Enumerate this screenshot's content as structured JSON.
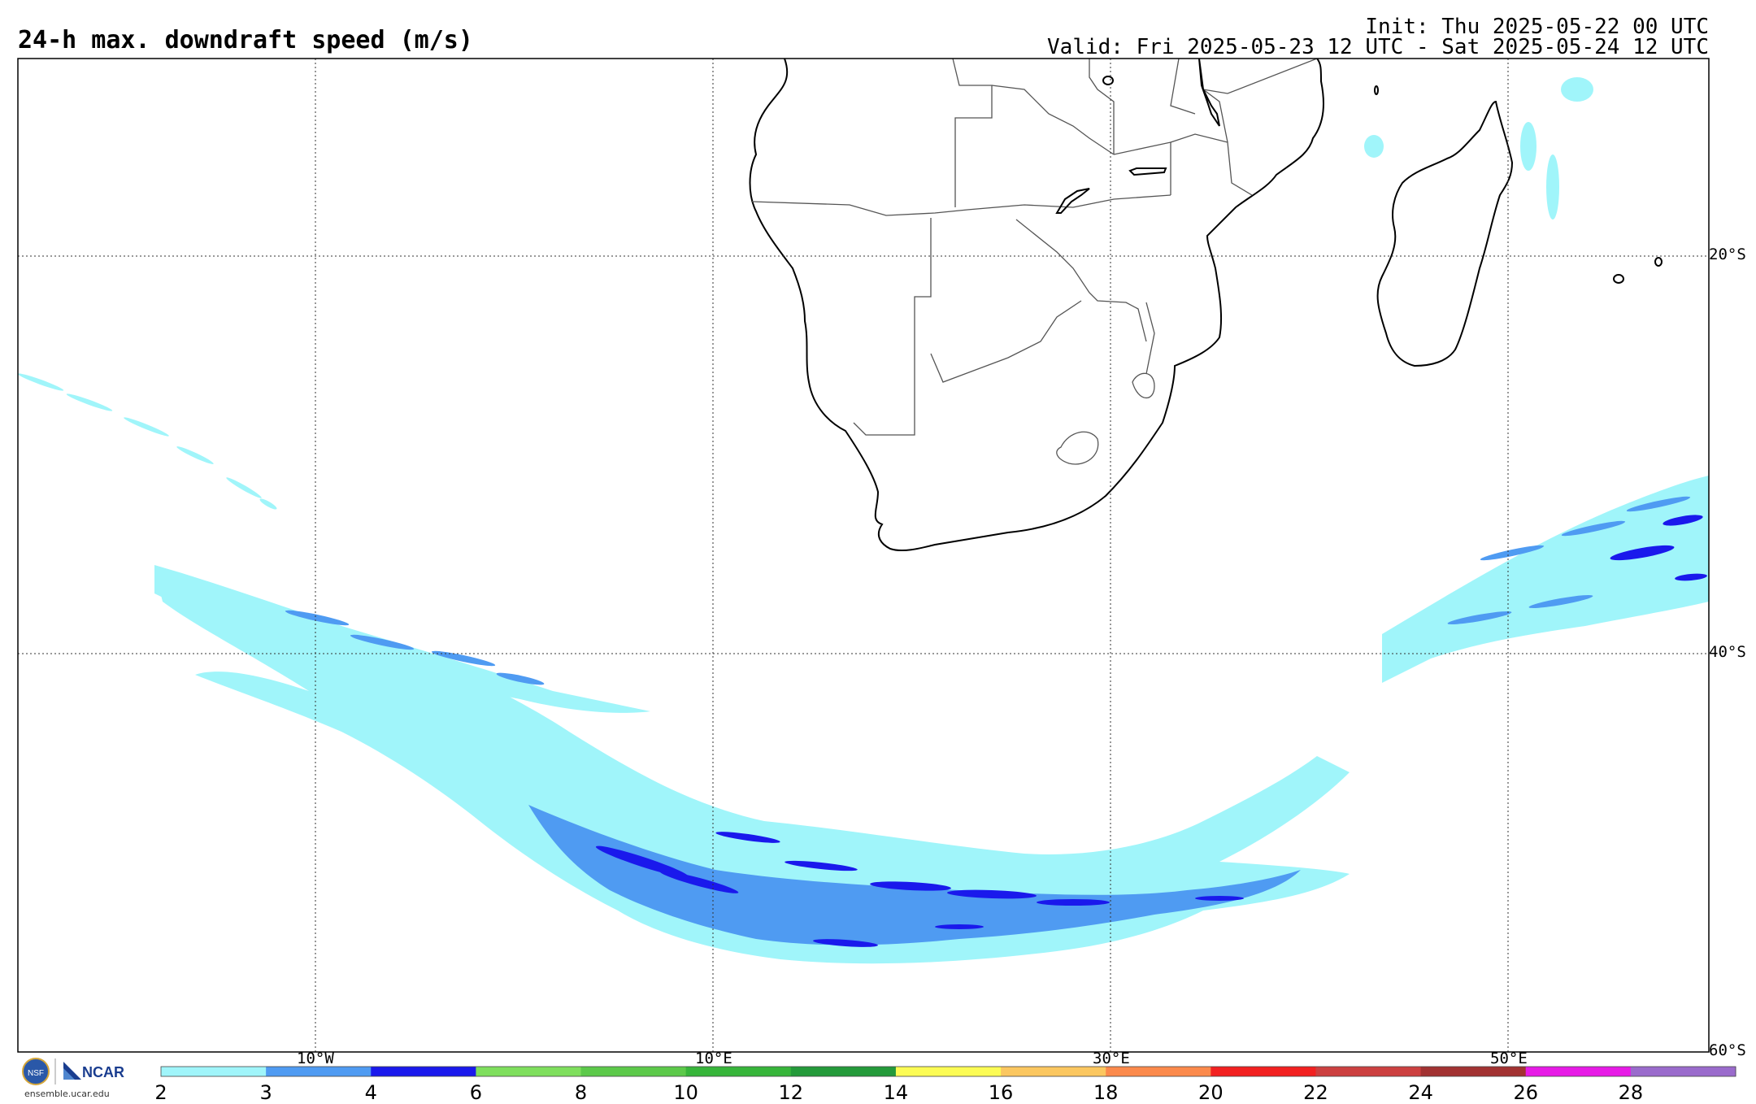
{
  "title": "24-h max. downdraft speed (m/s)",
  "init_text": "Init: Thu 2025-05-22 00 UTC",
  "valid_text": "Valid: Fri 2025-05-23 12 UTC - Sat 2025-05-24 12 UTC",
  "lat_labels": [
    "20°S",
    "40°S",
    "60°S"
  ],
  "lon_labels": [
    "10°W",
    "10°E",
    "30°E",
    "50°E"
  ],
  "colorbar": {
    "ticks": [
      "2",
      "3",
      "4",
      "6",
      "8",
      "10",
      "12",
      "14",
      "16",
      "18",
      "20",
      "22",
      "24",
      "26",
      "28"
    ],
    "colors": [
      "#a0f5fa",
      "#4f9bf2",
      "#1a19ec",
      "#7fdf5d",
      "#5cc94a",
      "#37b53a",
      "#249a3a",
      "#fcfc55",
      "#fbc760",
      "#fb8a4c",
      "#f22121",
      "#cc4040",
      "#a23232",
      "#e71be6",
      "#9a6bcc"
    ]
  },
  "logo": {
    "org": "NCAR",
    "url": "ensemble.ucar.edu"
  }
}
